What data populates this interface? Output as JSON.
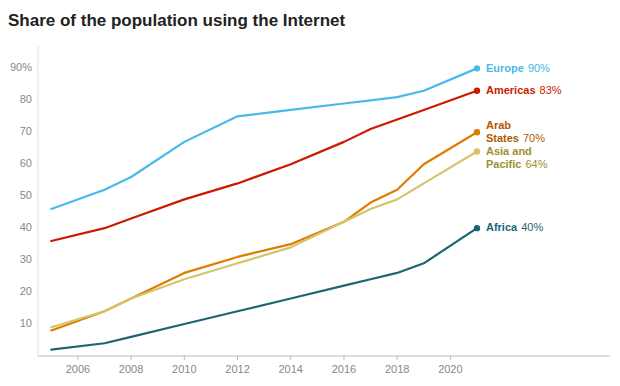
{
  "chart_data": {
    "type": "line",
    "title": "Share of the population using the Internet",
    "x": [
      2005,
      2007,
      2008,
      2010,
      2012,
      2014,
      2016,
      2017,
      2018,
      2019,
      2021
    ],
    "series": [
      {
        "color": "#4ab8e8",
        "values": [
          46,
          52,
          56,
          67,
          75,
          77,
          79,
          80,
          81,
          83,
          90
        ]
      },
      {
        "color": "#cc1a00",
        "values": [
          36,
          40,
          43,
          49,
          54,
          60,
          67,
          71,
          74,
          77,
          83
        ]
      },
      {
        "color": "#e07b00",
        "values": [
          8,
          14,
          18,
          26,
          31,
          35,
          42,
          48,
          52,
          60,
          70
        ]
      },
      {
        "color": "#d4c46a",
        "values": [
          9,
          14,
          18,
          24,
          29,
          34,
          42,
          46,
          49,
          54,
          64
        ]
      },
      {
        "color": "#1a6673",
        "values": [
          2,
          4,
          6,
          10,
          14,
          18,
          22,
          24,
          26,
          29,
          40
        ]
      }
    ],
    "annotations": [
      {
        "text": "Europe",
        "value_label": "90%",
        "value": 90,
        "color": "#4ab8e8"
      },
      {
        "text": "Americas",
        "value_label": "83%",
        "value": 83,
        "color": "#cc1a00"
      },
      {
        "text": "Arab\nStates",
        "value_label": "70%",
        "value": 70,
        "color": "#b05a00"
      },
      {
        "text": "Asia and\nPacific",
        "value_label": "64%",
        "value": 64,
        "color": "#a09030"
      },
      {
        "text": "Africa",
        "value_label": "40%",
        "value": 40,
        "color": "#1a6673"
      }
    ],
    "xlim": [
      2004.5,
      2026
    ],
    "ylim": [
      0,
      97
    ],
    "xticks": [
      2006,
      2008,
      2010,
      2012,
      2014,
      2016,
      2018,
      2020
    ],
    "yticks": [
      10,
      20,
      30,
      40,
      50,
      60,
      70,
      80,
      {
        "value": 90,
        "label": "90%"
      }
    ],
    "grid": false
  }
}
